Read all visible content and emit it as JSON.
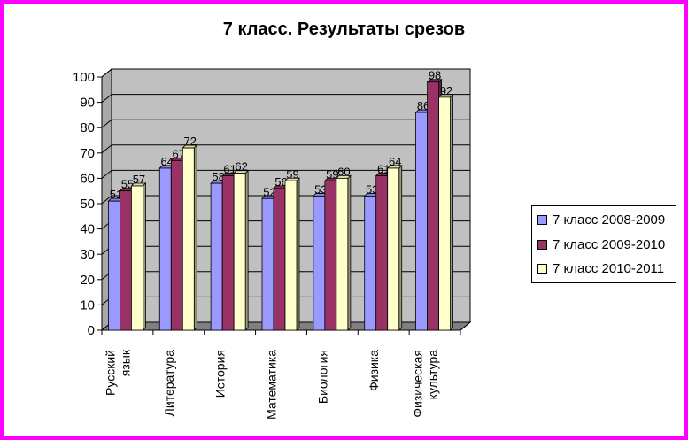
{
  "chart_data": {
    "type": "bar",
    "title": "7 класс. Результаты срезов",
    "categories": [
      "Русский язык",
      "Литература",
      "История",
      "Математика",
      "Биология",
      "Физика",
      "Физическая культура"
    ],
    "category_lines": [
      [
        "Русский",
        "язык"
      ],
      [
        "Литература"
      ],
      [
        "История"
      ],
      [
        "Математика"
      ],
      [
        "Биология"
      ],
      [
        "Физика"
      ],
      [
        "Физическая",
        "культура"
      ]
    ],
    "series": [
      {
        "name": "7 класс 2008-2009",
        "color": "#9999ff",
        "values": [
          51,
          64,
          58,
          52,
          53,
          53,
          86
        ]
      },
      {
        "name": "7 класс 2009-2010",
        "color": "#993366",
        "values": [
          55,
          67,
          61,
          56,
          59,
          61,
          98
        ]
      },
      {
        "name": "7 класс 2010-2011",
        "color": "#ffffcc",
        "values": [
          57,
          72,
          62,
          59,
          60,
          64,
          92
        ]
      }
    ],
    "ylim": [
      0,
      100
    ],
    "yticks": [
      0,
      10,
      20,
      30,
      40,
      50,
      60,
      70,
      80,
      90,
      100
    ],
    "grid": true,
    "legend_position": "right",
    "wall_color": "#c0c0c0",
    "floor_color": "#808080"
  }
}
